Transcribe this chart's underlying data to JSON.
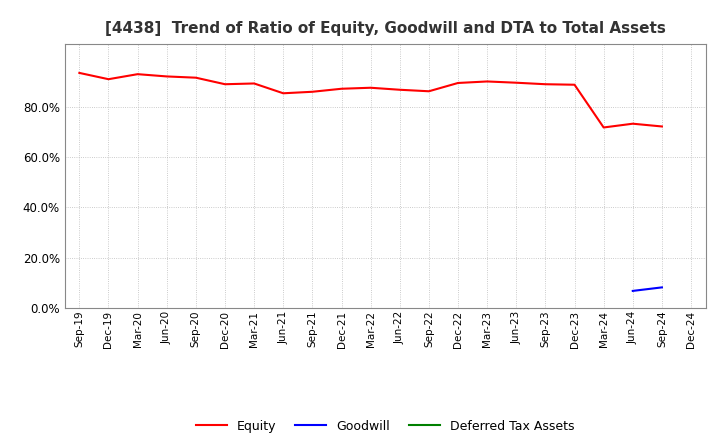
{
  "title": "[4438]  Trend of Ratio of Equity, Goodwill and DTA to Total Assets",
  "x_labels": [
    "Sep-19",
    "Dec-19",
    "Mar-20",
    "Jun-20",
    "Sep-20",
    "Dec-20",
    "Mar-21",
    "Jun-21",
    "Sep-21",
    "Dec-21",
    "Mar-22",
    "Jun-22",
    "Sep-22",
    "Dec-22",
    "Mar-23",
    "Jun-23",
    "Sep-23",
    "Dec-23",
    "Mar-24",
    "Jun-24",
    "Sep-24",
    "Dec-24"
  ],
  "equity": [
    0.935,
    0.91,
    0.93,
    0.921,
    0.916,
    0.89,
    0.893,
    0.854,
    0.86,
    0.872,
    0.876,
    0.868,
    0.862,
    0.895,
    0.901,
    0.896,
    0.89,
    0.888,
    0.718,
    0.733,
    0.722,
    null
  ],
  "goodwill": [
    null,
    null,
    null,
    null,
    null,
    null,
    null,
    null,
    null,
    null,
    null,
    null,
    null,
    null,
    null,
    null,
    null,
    null,
    null,
    0.068,
    0.082,
    null
  ],
  "equity_color": "#FF0000",
  "goodwill_color": "#0000FF",
  "dta_color": "#008000",
  "bg_color": "#FFFFFF",
  "plot_bg_color": "#FFFFFF",
  "grid_color": "#BBBBBB",
  "title_fontsize": 11,
  "ylim": [
    0.0,
    1.05
  ],
  "yticks": [
    0.0,
    0.2,
    0.4,
    0.6,
    0.8
  ],
  "line_width": 1.5
}
